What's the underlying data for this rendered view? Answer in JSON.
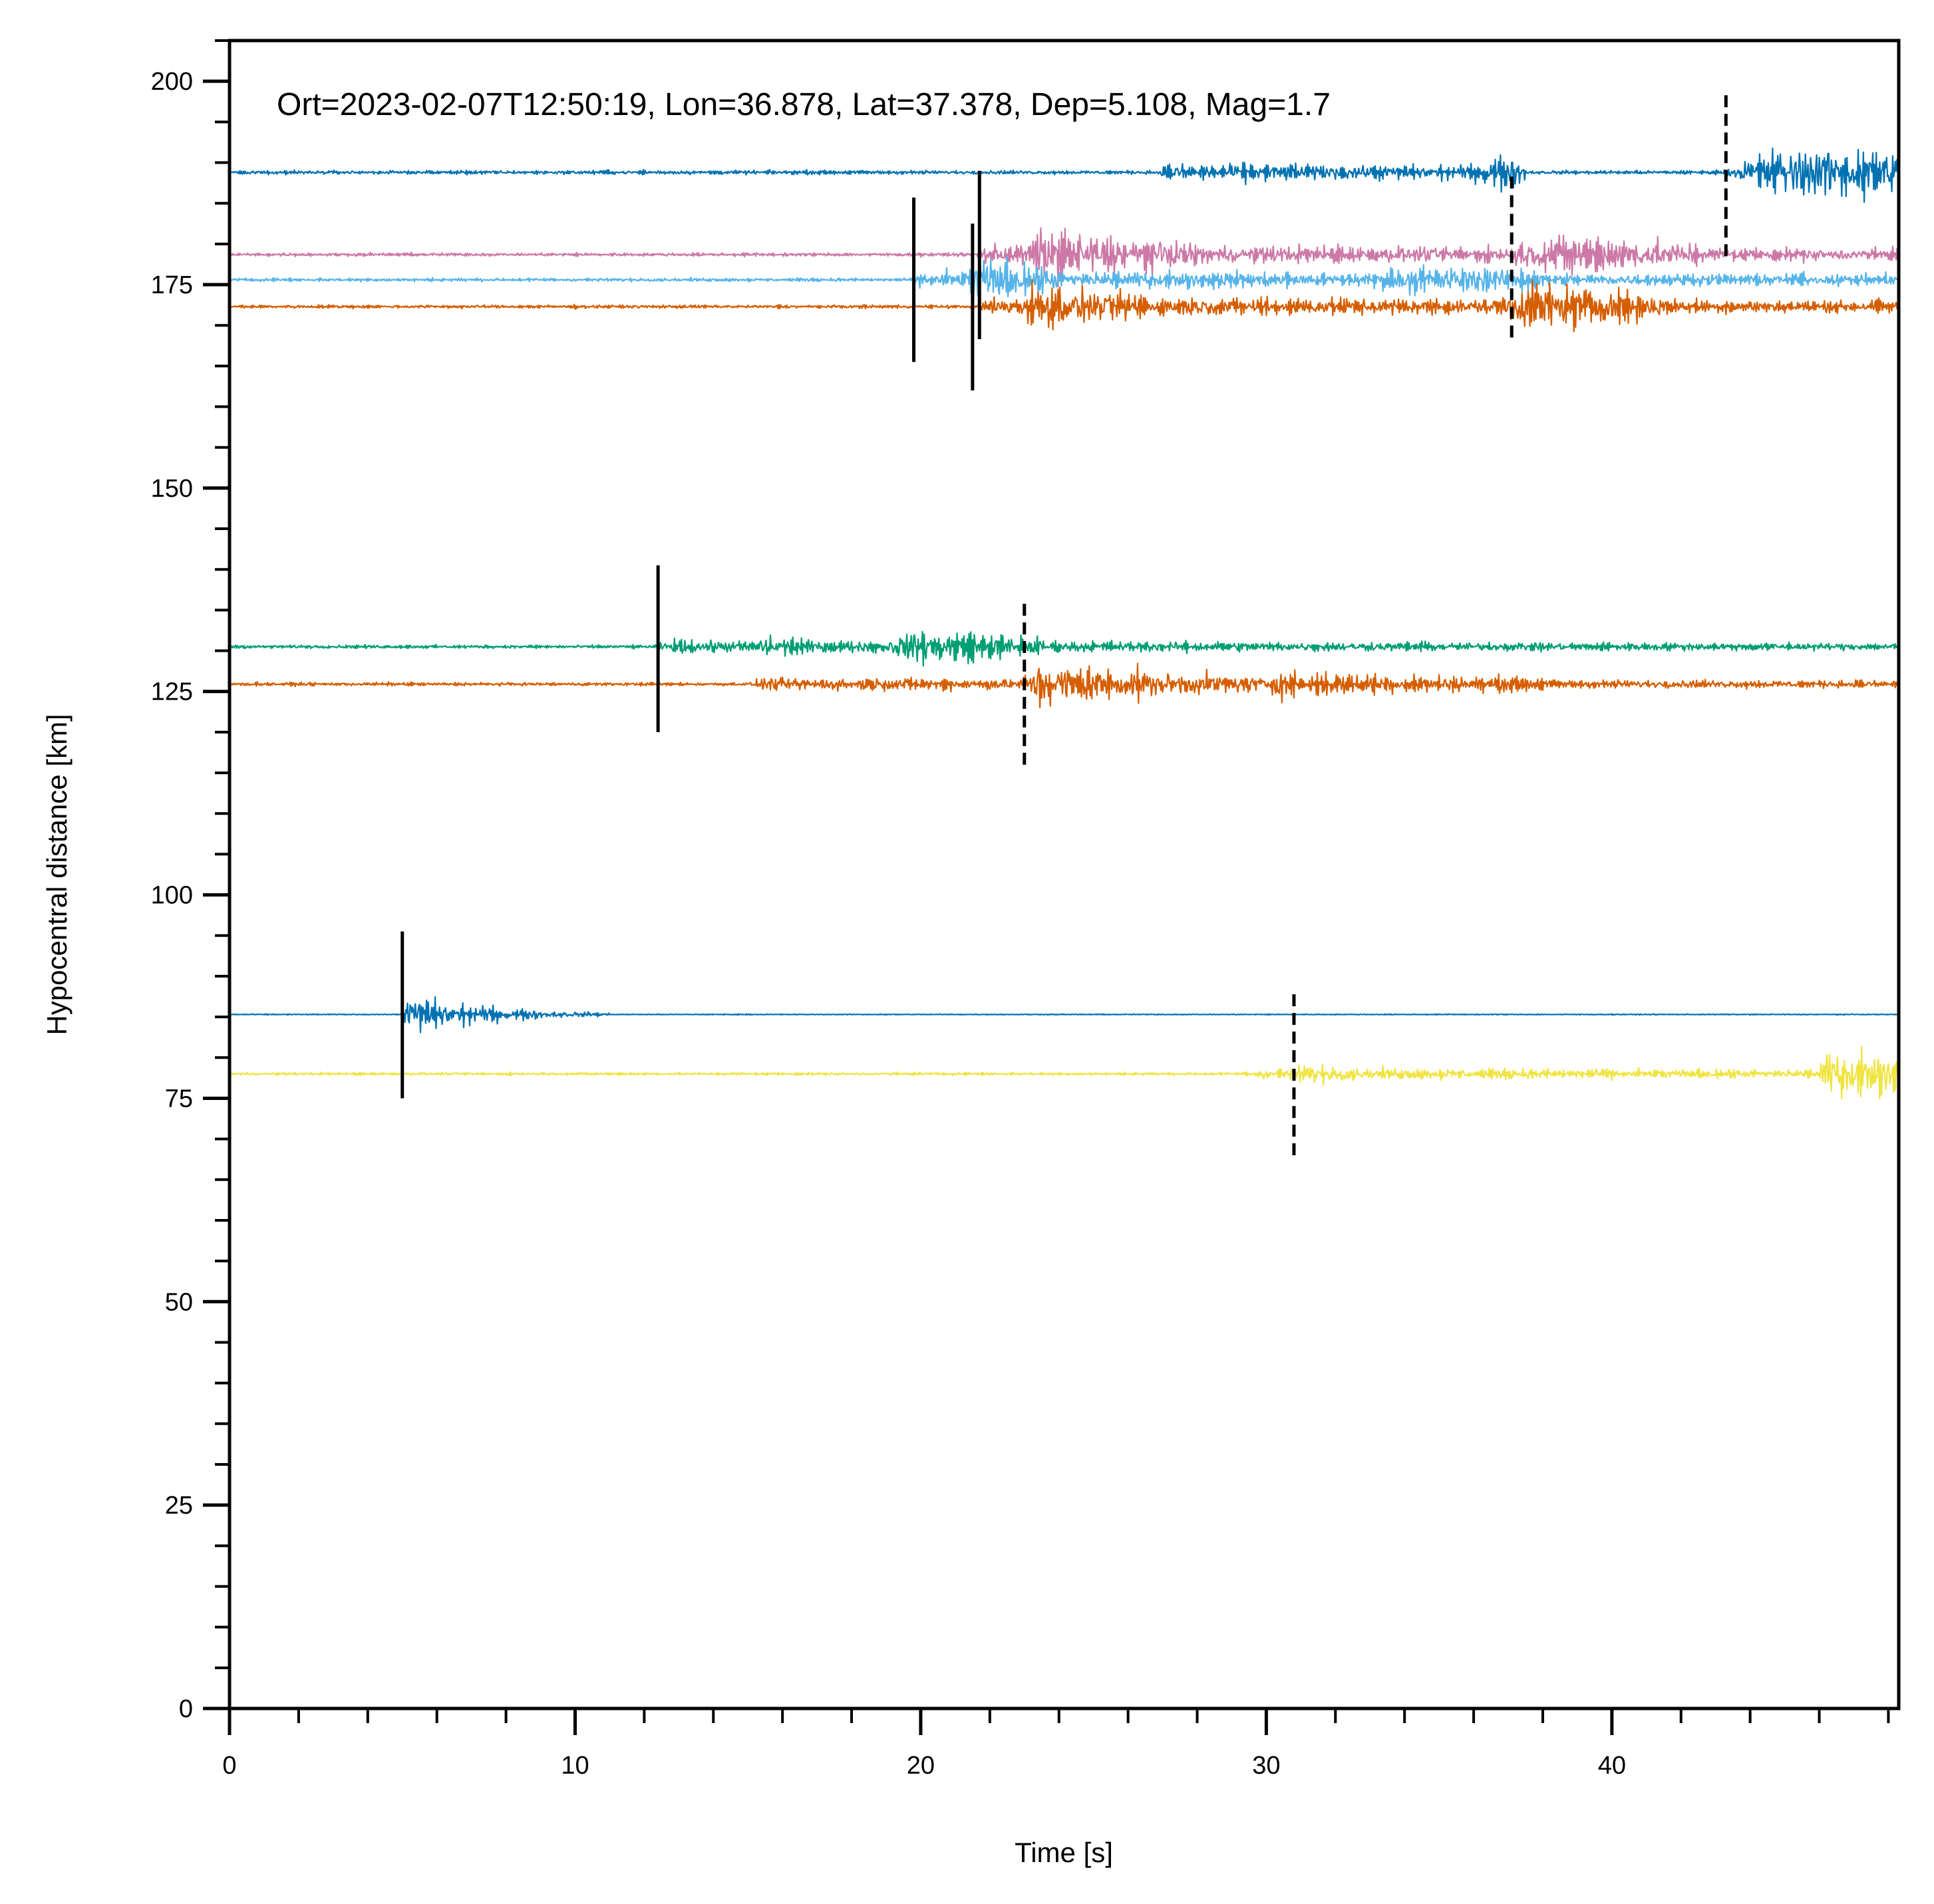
{
  "chart_data": {
    "type": "line",
    "title": "",
    "annotation": "Ort=2023-02-07T12:50:19, Lon=36.878, Lat=37.378, Dep=5.108, Mag=1.7",
    "xlabel": "Time [s]",
    "ylabel": "Hypocentral distance [km]",
    "xlim": [
      0,
      48.3
    ],
    "ylim": [
      0,
      205
    ],
    "xticks_major": [
      0,
      10,
      20,
      30,
      40
    ],
    "xtick_labels": [
      "0",
      "10",
      "20",
      "30",
      "40"
    ],
    "xticks_minor_step": 2,
    "yticks_major": [
      0,
      25,
      50,
      75,
      100,
      125,
      150,
      175,
      200
    ],
    "ytick_labels": [
      "0",
      "25",
      "50",
      "75",
      "100",
      "125",
      "150",
      "175",
      "200"
    ],
    "yticks_minor_step": 5,
    "grid": false,
    "legend": "none",
    "series": [
      {
        "color": "#0072B2",
        "baseline": 188.8,
        "noise": 0.35,
        "bursts": [
          {
            "t0": 26.8,
            "t1": 37.5,
            "amp": 1.3,
            "rise": 0.5,
            "decay": 25
          },
          {
            "t0": 36.0,
            "t1": 37.5,
            "amp": 2.0,
            "rise": 0.3,
            "decay": 3
          },
          {
            "t0": 43.3,
            "t1": 48.3,
            "amp": 4.8,
            "rise": 1.5,
            "decay": 40
          }
        ]
      },
      {
        "color": "#CC79A7",
        "baseline": 178.7,
        "noise": 0.3,
        "bursts": [
          {
            "t0": 21.6,
            "t1": 48.3,
            "amp": 1.6,
            "rise": 0.3,
            "decay": 40
          },
          {
            "t0": 23.2,
            "t1": 28.0,
            "amp": 3.5,
            "rise": 0.2,
            "decay": 3
          },
          {
            "t0": 36.8,
            "t1": 42.5,
            "amp": 4.2,
            "rise": 2.0,
            "decay": 4
          }
        ]
      },
      {
        "color": "#56B4E9",
        "baseline": 175.6,
        "noise": 0.3,
        "bursts": [
          {
            "t0": 19.8,
            "t1": 48.3,
            "amp": 1.4,
            "rise": 0.3,
            "decay": 40
          },
          {
            "t0": 21.4,
            "t1": 24.0,
            "amp": 3.8,
            "rise": 0.1,
            "decay": 1.5
          },
          {
            "t0": 33.0,
            "t1": 38.0,
            "amp": 3.0,
            "rise": 2.0,
            "decay": 3
          }
        ]
      },
      {
        "color": "#D55E00",
        "baseline": 172.3,
        "noise": 0.3,
        "bursts": [
          {
            "t0": 21.7,
            "t1": 48.3,
            "amp": 1.6,
            "rise": 0.3,
            "decay": 40
          },
          {
            "t0": 23.0,
            "t1": 26.5,
            "amp": 2.6,
            "rise": 0.3,
            "decay": 2.5
          },
          {
            "t0": 36.5,
            "t1": 41.5,
            "amp": 4.0,
            "rise": 1.0,
            "decay": 4
          }
        ]
      },
      {
        "color": "#009E73",
        "baseline": 130.5,
        "noise": 0.3,
        "bursts": [
          {
            "t0": 12.4,
            "t1": 48.3,
            "amp": 0.9,
            "rise": 0.3,
            "decay": 40
          },
          {
            "t0": 15.2,
            "t1": 16.6,
            "amp": 1.6,
            "rise": 0.2,
            "decay": 1
          },
          {
            "t0": 18.8,
            "t1": 23.5,
            "amp": 3.6,
            "rise": 1.5,
            "decay": 3
          }
        ]
      },
      {
        "color": "#D55E00",
        "baseline": 125.9,
        "noise": 0.3,
        "bursts": [
          {
            "t0": 15.0,
            "t1": 48.3,
            "amp": 0.9,
            "rise": 0.5,
            "decay": 40
          },
          {
            "t0": 22.9,
            "t1": 30.0,
            "amp": 3.8,
            "rise": 0.5,
            "decay": 4
          },
          {
            "t0": 30.0,
            "t1": 38.0,
            "amp": 1.5,
            "rise": 0.2,
            "decay": 6
          }
        ]
      },
      {
        "color": "#0072B2",
        "baseline": 85.3,
        "noise": 0.08,
        "bursts": [
          {
            "t0": 5.0,
            "t1": 11.0,
            "amp": 4.0,
            "rise": 0.2,
            "decay": 2.2
          }
        ]
      },
      {
        "color": "#F0E442",
        "baseline": 78.0,
        "noise": 0.25,
        "bursts": [
          {
            "t0": 29.3,
            "t1": 48.3,
            "amp": 0.8,
            "rise": 0.5,
            "decay": 40
          },
          {
            "t0": 30.8,
            "t1": 32.5,
            "amp": 1.0,
            "rise": 0.2,
            "decay": 1.5
          },
          {
            "t0": 46.0,
            "t1": 48.3,
            "amp": 3.5,
            "rise": 0.1,
            "decay": 10
          }
        ]
      }
    ],
    "picks": [
      {
        "phase": "P",
        "style": "solid",
        "t": 19.8,
        "y": [
          165.5,
          185.7
        ]
      },
      {
        "phase": "P",
        "style": "solid",
        "t": 21.5,
        "y": [
          162.0,
          182.5
        ]
      },
      {
        "phase": "P",
        "style": "solid",
        "t": 21.7,
        "y": [
          168.3,
          189.0
        ]
      },
      {
        "phase": "S",
        "style": "dashed",
        "t": 37.1,
        "y": [
          168.5,
          189.0
        ]
      },
      {
        "phase": "S",
        "style": "dashed",
        "t": 43.3,
        "y": [
          178.5,
          198.8
        ]
      },
      {
        "phase": "P",
        "style": "solid",
        "t": 12.4,
        "y": [
          120.0,
          140.5
        ]
      },
      {
        "phase": "S",
        "style": "dashed",
        "t": 23.0,
        "y": [
          116.0,
          136.0
        ]
      },
      {
        "phase": "P",
        "style": "solid",
        "t": 5.0,
        "y": [
          75.0,
          95.5
        ]
      },
      {
        "phase": "S",
        "style": "dashed",
        "t": 30.8,
        "y": [
          68.0,
          88.0
        ]
      }
    ]
  }
}
